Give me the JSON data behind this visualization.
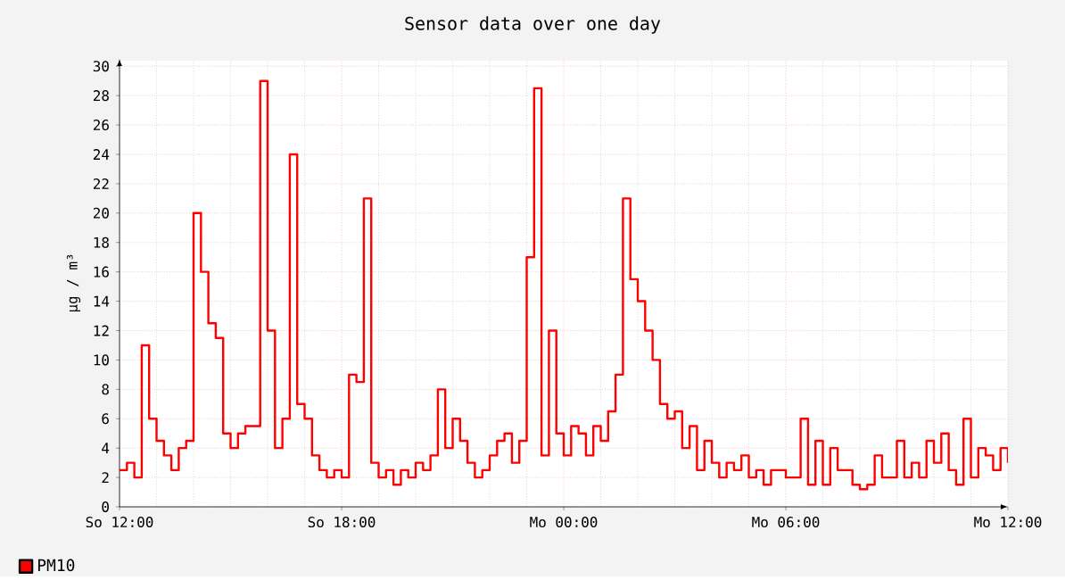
{
  "chart_data": {
    "type": "step",
    "title": "Sensor data over one day",
    "ylabel": "µg / m³",
    "categories": [
      "So 12:00",
      null,
      null,
      null,
      null,
      null,
      null,
      null,
      null,
      null,
      null,
      null,
      null,
      null,
      null,
      null,
      null,
      null,
      null,
      null,
      null,
      null,
      null,
      null,
      null,
      null,
      null,
      null,
      null,
      null,
      "So 18:00",
      null,
      null,
      null,
      null,
      null,
      null,
      null,
      null,
      null,
      null,
      null,
      null,
      null,
      null,
      null,
      null,
      null,
      null,
      null,
      null,
      null,
      null,
      null,
      null,
      null,
      null,
      null,
      null,
      null,
      "Mo 00:00",
      null,
      null,
      null,
      null,
      null,
      null,
      null,
      null,
      null,
      null,
      null,
      null,
      null,
      null,
      null,
      null,
      null,
      null,
      null,
      null,
      null,
      null,
      null,
      null,
      null,
      null,
      null,
      null,
      null,
      "Mo 06:00",
      null,
      null,
      null,
      null,
      null,
      null,
      null,
      null,
      null,
      null,
      null,
      null,
      null,
      null,
      null,
      null,
      null,
      null,
      null,
      null,
      null,
      null,
      null,
      null,
      null,
      null,
      null,
      null,
      null,
      "Mo 12:00"
    ],
    "series": [
      {
        "name": "PM10",
        "color": "#ff0000",
        "values": [
          2.5,
          3,
          2,
          11,
          6,
          4.5,
          3.5,
          2.5,
          4,
          4.5,
          20,
          16,
          12.5,
          11.5,
          5,
          4,
          5,
          5.5,
          5.5,
          29,
          12,
          4,
          6,
          24,
          7,
          6,
          3.5,
          2.5,
          2,
          2.5,
          2,
          9,
          8.5,
          21,
          3,
          2,
          2.5,
          1.5,
          2.5,
          2,
          3,
          2.5,
          3.5,
          8,
          4,
          6,
          4.5,
          3,
          2,
          2.5,
          3.5,
          4.5,
          5,
          3,
          4.5,
          17,
          28.5,
          3.5,
          12,
          5,
          3.5,
          5.5,
          5,
          3.5,
          5.5,
          4.5,
          6.5,
          9,
          21,
          15.5,
          14,
          12,
          10,
          7,
          6,
          6.5,
          4,
          5.5,
          2.5,
          4.5,
          3,
          2,
          3,
          2.5,
          3.5,
          2,
          2.5,
          1.5,
          2.5,
          2.5,
          2,
          2,
          6,
          1.5,
          4.5,
          1.5,
          4,
          2.5,
          2.5,
          1.5,
          1.2,
          1.5,
          3.5,
          2,
          2,
          4.5,
          2,
          3,
          2,
          4.5,
          3,
          5,
          2.5,
          1.5,
          6,
          2,
          4,
          3.5,
          2.5,
          4,
          3
        ]
      }
    ],
    "ylim": [
      0,
      30.5
    ],
    "yticks": [
      0,
      2,
      4,
      6,
      8,
      10,
      12,
      14,
      16,
      18,
      20,
      22,
      24,
      26,
      28,
      30
    ],
    "grid": true,
    "legend": "bottom left",
    "line_style": "solid"
  }
}
